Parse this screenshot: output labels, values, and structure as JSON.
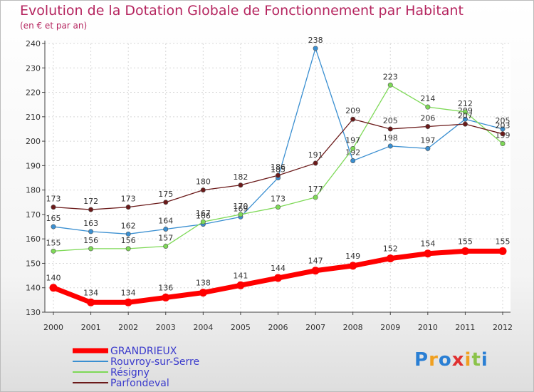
{
  "chart_data": {
    "type": "line",
    "title": "Evolution de la Dotation Globale de Fonctionnement par Habitant",
    "subtitle": "(en € et par an)",
    "xlabel": "",
    "ylabel": "",
    "x": [
      "2000",
      "2001",
      "2002",
      "2003",
      "2004",
      "2005",
      "2006",
      "2007",
      "2008",
      "2009",
      "2010",
      "2011",
      "2012"
    ],
    "ylim": [
      130,
      240
    ],
    "yticks": [
      130,
      140,
      150,
      160,
      170,
      180,
      190,
      200,
      210,
      220,
      230,
      240
    ],
    "grid": true,
    "legend_position": "bottom-left",
    "series": [
      {
        "name": "GRANDRIEUX",
        "color": "#ff0000",
        "values": [
          140,
          134,
          134,
          136,
          138,
          141,
          144,
          147,
          149,
          152,
          154,
          155,
          155
        ]
      },
      {
        "name": "Rouvroy-sur-Serre",
        "color": "#3a8fd1",
        "values": [
          165,
          163,
          162,
          164,
          166,
          169,
          185,
          238,
          192,
          198,
          197,
          209,
          205
        ]
      },
      {
        "name": "Résigny",
        "color": "#7ed957",
        "values": [
          155,
          156,
          156,
          157,
          167,
          170,
          173,
          177,
          197,
          223,
          214,
          212,
          199
        ]
      },
      {
        "name": "Parfondeval",
        "color": "#6b1a1a",
        "values": [
          173,
          172,
          173,
          175,
          180,
          182,
          186,
          191,
          209,
          205,
          206,
          207,
          203
        ]
      }
    ]
  },
  "logo": {
    "letters": [
      "P",
      "r",
      "o",
      "x",
      "i",
      "t",
      "i"
    ],
    "colors": [
      "#2a7fd4",
      "#f0a020",
      "#2a7fd4",
      "#e03030",
      "#f0a020",
      "#8bc34a",
      "#2a7fd4"
    ]
  }
}
